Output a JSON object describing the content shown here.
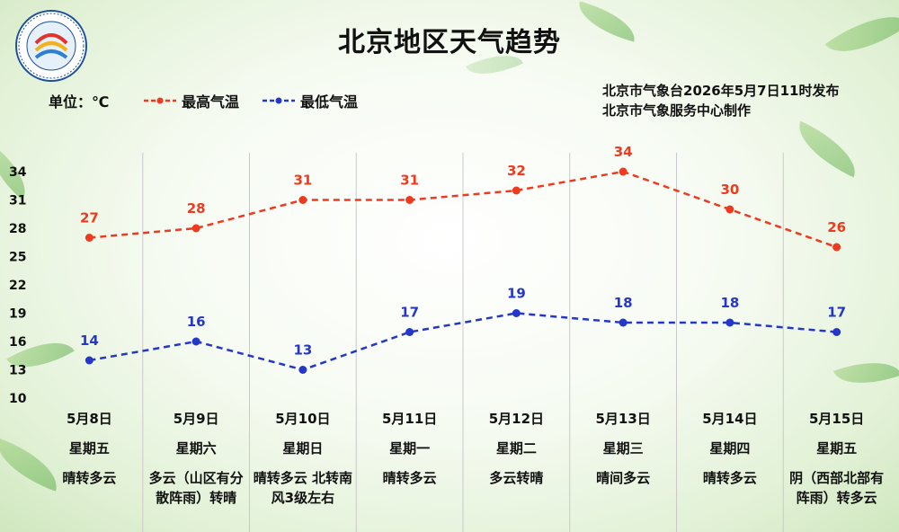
{
  "title": "北京地区天气趋势",
  "unit_label": "单位：℃",
  "credits": {
    "issued": "北京市气象台2026年5月7日11时发布",
    "producer": "北京市气象服务中心制作"
  },
  "colors": {
    "high": "#ee3a1e",
    "low": "#2437c8",
    "grid": "#c9c9c9"
  },
  "chart_data": {
    "type": "line",
    "categories": [
      "5月8日",
      "5月9日",
      "5月10日",
      "5月11日",
      "5月12日",
      "5月13日",
      "5月14日",
      "5月15日"
    ],
    "series": [
      {
        "name": "最高气温",
        "values": [
          27,
          28,
          31,
          31,
          32,
          34,
          30,
          26
        ]
      },
      {
        "name": "最低气温",
        "values": [
          14,
          16,
          13,
          17,
          19,
          18,
          18,
          17
        ]
      }
    ],
    "y_ticks": [
      10,
      13,
      16,
      19,
      22,
      25,
      28,
      31,
      34
    ],
    "ylim": [
      10,
      34
    ],
    "grid": "vertical",
    "legend_position": "top-left"
  },
  "days": [
    {
      "date": "5月8日",
      "weekday": "星期五",
      "weather": "晴转多云"
    },
    {
      "date": "5月9日",
      "weekday": "星期六",
      "weather": "多云（山区有分散阵雨）转晴"
    },
    {
      "date": "5月10日",
      "weekday": "星期日",
      "weather": "晴转多云 北转南风3级左右"
    },
    {
      "date": "5月11日",
      "weekday": "星期一",
      "weather": "晴转多云"
    },
    {
      "date": "5月12日",
      "weekday": "星期二",
      "weather": "多云转晴"
    },
    {
      "date": "5月13日",
      "weekday": "星期三",
      "weather": "晴间多云"
    },
    {
      "date": "5月14日",
      "weekday": "星期四",
      "weather": "晴转多云"
    },
    {
      "date": "5月15日",
      "weekday": "星期五",
      "weather": "阴（西部北部有阵雨）转多云"
    }
  ]
}
